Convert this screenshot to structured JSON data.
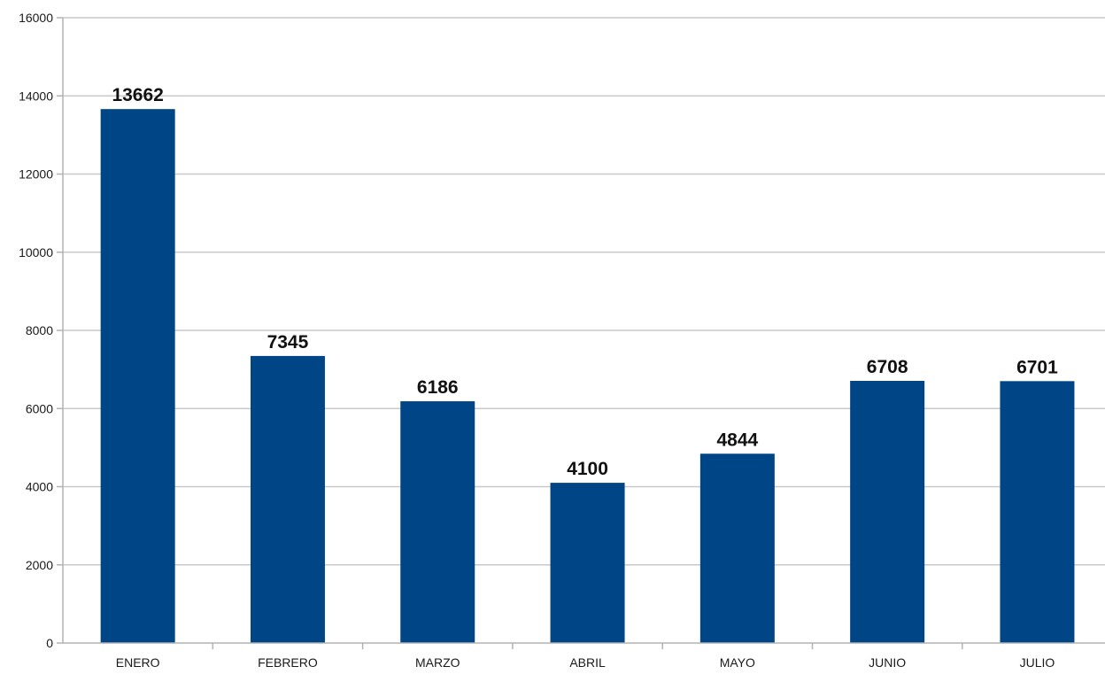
{
  "chart_data": {
    "type": "bar",
    "title": "",
    "xlabel": "",
    "ylabel": "",
    "categories": [
      "ENERO",
      "FEBRERO",
      "MARZO",
      "ABRIL",
      "MAYO",
      "JUNIO",
      "JULIO"
    ],
    "values": [
      13662,
      7345,
      6186,
      4100,
      4844,
      6708,
      6701
    ],
    "data_labels": [
      "13662",
      "7345",
      "6186",
      "4100",
      "4844",
      "6708",
      "6701"
    ],
    "ylim": [
      0,
      16000
    ],
    "yticks": [
      0,
      2000,
      4000,
      6000,
      8000,
      10000,
      12000,
      14000,
      16000
    ],
    "grid": true,
    "legend": "none",
    "bar_color": "#004586"
  }
}
